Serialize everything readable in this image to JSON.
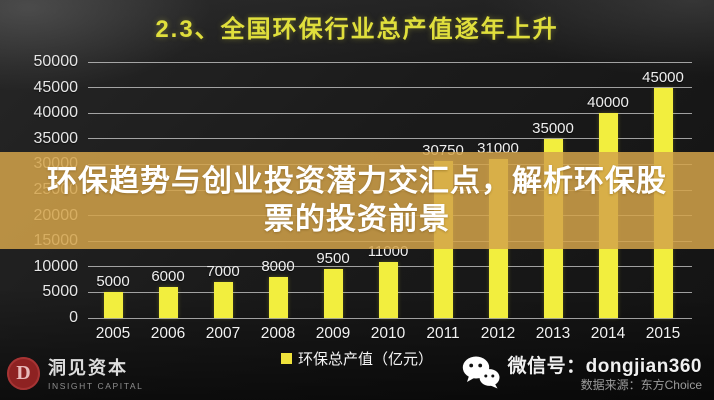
{
  "title": "2.3、全国环保行业总产值逐年上升",
  "overlay": {
    "line1": "环保趋势与创业投资潜力交汇点，解析环保股",
    "line2": "票的投资前景"
  },
  "chart_data": {
    "type": "bar",
    "title": "2.3、全国环保行业总产值逐年上升",
    "categories": [
      "2005",
      "2006",
      "2007",
      "2008",
      "2009",
      "2010",
      "2011",
      "2012",
      "2013",
      "2014",
      "2015"
    ],
    "values": [
      5000,
      6000,
      7000,
      8000,
      9500,
      11000,
      30750,
      31000,
      35000,
      40000,
      45000
    ],
    "series_name": "环保总产值（亿元）",
    "xlabel": "",
    "ylabel": "",
    "ylim": [
      0,
      50000
    ],
    "ytick_step": 5000,
    "grid": true,
    "legend_position": "bottom",
    "bar_color": "#f2ee3e"
  },
  "legend": {
    "label": "环保总产值（亿元）"
  },
  "footer": {
    "logo_letter": "D",
    "logo_name": "洞见资本",
    "logo_subname": "INSIGHT CAPITAL",
    "wechat_label": "微信号：dongjian360",
    "source_label": "数据来源：东方Choice"
  },
  "colors": {
    "background": "#1b1b1b",
    "title_yellow": "#e0df3c",
    "bar_yellow": "#f2ee3e",
    "band_tan": "rgba(212,163,74,0.85)",
    "gridline": "#e1e1e1",
    "logo_red": "#8e2222"
  }
}
